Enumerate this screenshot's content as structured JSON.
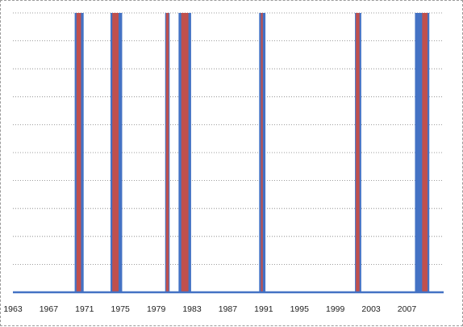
{
  "chart_data": {
    "type": "bar",
    "title": "",
    "xlabel": "",
    "ylabel": "",
    "x_range": [
      1963.0,
      2011.1
    ],
    "y_range": [
      0,
      1
    ],
    "x_tick_labels": [
      "1963",
      "1967",
      "1971",
      "1975",
      "1979",
      "1983",
      "1987",
      "1991",
      "1995",
      "1999",
      "2003",
      "2007"
    ],
    "x_tick_values": [
      1963,
      1967,
      1971,
      1975,
      1979,
      1983,
      1987,
      1991,
      1995,
      1999,
      2003,
      2007
    ],
    "y_gridlines": 10,
    "grid": "horizontal-dotted",
    "legend": "none",
    "baseline_color": "#4472c4",
    "series": [
      {
        "color": "#4472c4",
        "intervals": [
          [
            1969.9,
            1970.9
          ],
          [
            1973.9,
            1975.2
          ],
          [
            1980.0,
            1980.5
          ],
          [
            1981.5,
            1982.9
          ],
          [
            1990.5,
            1991.2
          ],
          [
            2001.2,
            2001.9
          ],
          [
            2007.9,
            2009.5
          ]
        ]
      },
      {
        "color": "#c0504d",
        "intervals": [
          [
            1970.1,
            1970.6
          ],
          [
            1974.1,
            1974.8
          ],
          [
            1980.1,
            1980.4
          ],
          [
            1981.8,
            1982.6
          ],
          [
            1990.7,
            1990.9
          ],
          [
            2001.3,
            2001.7
          ],
          [
            2008.7,
            2009.3
          ]
        ]
      }
    ]
  }
}
